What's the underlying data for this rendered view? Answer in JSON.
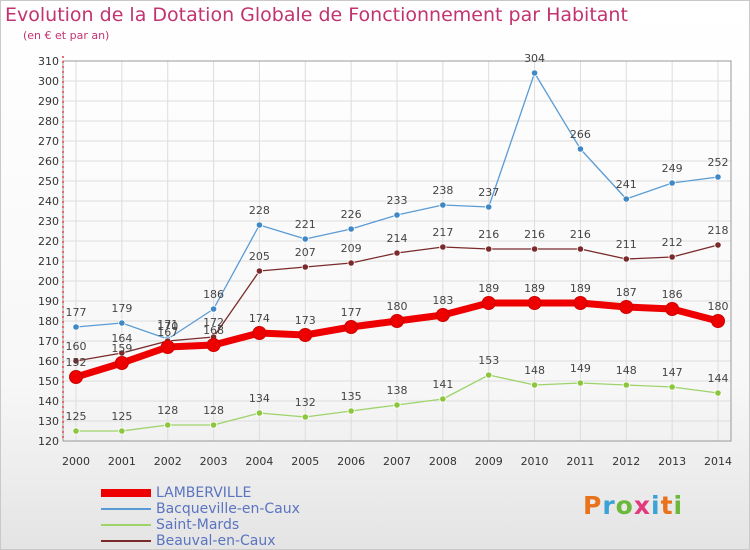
{
  "header": {
    "title": "Evolution de la Dotation Globale de Fonctionnement par Habitant",
    "subtitle": "(en € et par an)"
  },
  "logo": {
    "text": "Proxiti",
    "colors": [
      "#e8731c",
      "#3aa2d5",
      "#6bb83a",
      "#e23a7c",
      "#3aa2d5",
      "#e8731c",
      "#6bb83a"
    ]
  },
  "chart_data": {
    "type": "line",
    "x": [
      "2000",
      "2001",
      "2002",
      "2003",
      "2004",
      "2005",
      "2006",
      "2007",
      "2008",
      "2009",
      "2010",
      "2011",
      "2012",
      "2013",
      "2014"
    ],
    "ylim": [
      120,
      310
    ],
    "yticks": [
      120,
      130,
      140,
      150,
      160,
      170,
      180,
      190,
      200,
      210,
      220,
      230,
      240,
      250,
      260,
      270,
      280,
      290,
      300,
      310
    ],
    "grid": true,
    "legend_position": "bottom-left",
    "series": [
      {
        "name": "Bacqueville-en-Caux",
        "color": "#5b9bd5",
        "marker": "#3f88c5",
        "values": [
          177,
          179,
          171,
          186,
          228,
          221,
          226,
          233,
          238,
          237,
          304,
          266,
          241,
          249,
          252
        ]
      },
      {
        "name": "Beauval-en-Caux",
        "color": "#7a2a2a",
        "marker": "#7a2a2a",
        "values": [
          160,
          164,
          170,
          172,
          205,
          207,
          209,
          214,
          217,
          216,
          216,
          216,
          211,
          212,
          218
        ]
      },
      {
        "name": "Saint-Mards",
        "color": "#9ed36a",
        "marker": "#8cc63f",
        "values": [
          125,
          125,
          128,
          128,
          134,
          132,
          135,
          138,
          141,
          153,
          148,
          149,
          148,
          147,
          144
        ]
      },
      {
        "name": "LAMBERVILLE",
        "color": "#ee0000",
        "marker": "#ee0000",
        "values": [
          152,
          159,
          167,
          168,
          174,
          173,
          177,
          180,
          183,
          189,
          189,
          189,
          187,
          186,
          180
        ]
      }
    ],
    "legend_order": [
      "LAMBERVILLE",
      "Bacqueville-en-Caux",
      "Saint-Mards",
      "Beauval-en-Caux"
    ]
  }
}
